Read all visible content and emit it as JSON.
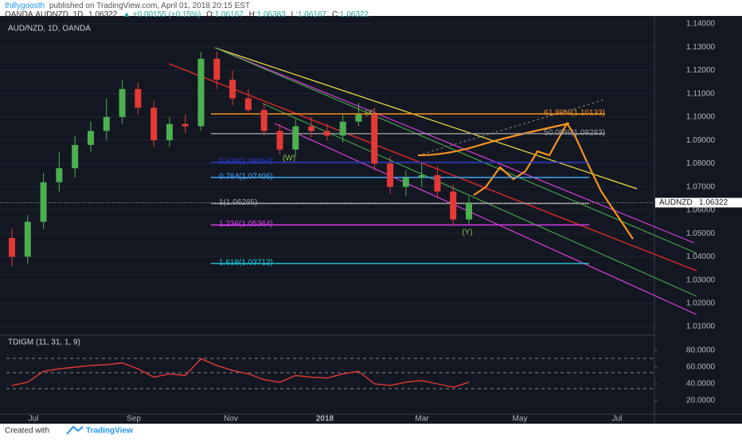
{
  "header": {
    "author": "thillygoosth",
    "published": "published on TradingView.com, April 01, 2018 20:15 EST",
    "symbol": "OANDA:AUDNZD, 1D",
    "last": "1.06322",
    "change": "▲ +0.00155 (+0.15%)",
    "ohlc": [
      {
        "k": "O:",
        "v": "1.06167"
      },
      {
        "k": "H:",
        "v": "1.06383"
      },
      {
        "k": "L:",
        "v": "1.06167"
      },
      {
        "k": "C:",
        "v": "1.06322"
      }
    ]
  },
  "chart_data": {
    "type": "candlestick",
    "title": "AUD/NZD, 1D, OANDA",
    "x_labels": [
      "Jul",
      "Sep",
      "Nov",
      "2018",
      "Mar",
      "May",
      "Jul"
    ],
    "opens": [
      1.048,
      1.04,
      1.055,
      1.072,
      1.078,
      1.088,
      1.094,
      1.1,
      1.112,
      1.104,
      1.09,
      1.097,
      1.096,
      1.125,
      1.116,
      1.108,
      1.103,
      1.094,
      1.086,
      1.096,
      1.094,
      1.092,
      1.098,
      1.101,
      1.08,
      1.07,
      1.074,
      1.075,
      1.068,
      1.056
    ],
    "highs": [
      1.052,
      1.058,
      1.076,
      1.085,
      1.092,
      1.098,
      1.108,
      1.116,
      1.115,
      1.107,
      1.1,
      1.101,
      1.128,
      1.128,
      1.12,
      1.112,
      1.106,
      1.097,
      1.099,
      1.1,
      1.097,
      1.101,
      1.106,
      1.104,
      1.083,
      1.077,
      1.08,
      1.079,
      1.071,
      1.066
    ],
    "lows": [
      1.036,
      1.037,
      1.052,
      1.068,
      1.074,
      1.085,
      1.09,
      1.097,
      1.101,
      1.087,
      1.087,
      1.093,
      1.094,
      1.112,
      1.105,
      1.101,
      1.092,
      1.084,
      1.083,
      1.091,
      1.09,
      1.089,
      1.096,
      1.077,
      1.067,
      1.066,
      1.07,
      1.065,
      1.053,
      1.054
    ],
    "closes": [
      1.04,
      1.055,
      1.072,
      1.078,
      1.088,
      1.094,
      1.1,
      1.112,
      1.104,
      1.09,
      1.097,
      1.096,
      1.125,
      1.116,
      1.108,
      1.103,
      1.094,
      1.086,
      1.096,
      1.094,
      1.092,
      1.098,
      1.101,
      1.08,
      1.07,
      1.074,
      1.075,
      1.068,
      1.056,
      1.06322
    ],
    "up_color": "#4caf50",
    "down_color": "#e53935",
    "ylim": [
      1.0073,
      1.1427
    ],
    "yticks": [
      {
        "value": 1.01,
        "label": "1.01000"
      },
      {
        "value": 1.02,
        "label": "1.02000"
      },
      {
        "value": 1.03,
        "label": "1.03000"
      },
      {
        "value": 1.04,
        "label": "1.04000"
      },
      {
        "value": 1.05,
        "label": "1.05000"
      },
      {
        "value": 1.06,
        "label": "1.06000"
      },
      {
        "value": 1.07,
        "label": "1.07000"
      },
      {
        "value": 1.08,
        "label": "1.08000"
      },
      {
        "value": 1.09,
        "label": "1.09000"
      },
      {
        "value": 1.1,
        "label": "1.10000"
      },
      {
        "value": 1.11,
        "label": "1.11000"
      },
      {
        "value": 1.12,
        "label": "1.12000"
      },
      {
        "value": 1.13,
        "label": "1.13000"
      },
      {
        "value": 1.14,
        "label": "1.14000"
      }
    ],
    "price_tag": {
      "name": "AUDNZD",
      "value": 1.06322,
      "label": "1.06322"
    },
    "fib_levels": [
      {
        "value": 1.10133,
        "label": "61.80%(1.10133)",
        "color": "#f7931e",
        "anchor": "end"
      },
      {
        "value": 1.09283,
        "label": "50.00%(1.09283)",
        "color": "#9e9e9e",
        "anchor": "end"
      },
      {
        "value": 1.08054,
        "label": "0.618(1.08054)",
        "color": "#2a3bd8",
        "anchor": "start"
      },
      {
        "value": 1.07406,
        "label": "0.764(1.07406)",
        "color": "#42a5f5",
        "anchor": "start"
      },
      {
        "value": 1.06285,
        "label": "1(1.06285)",
        "color": "#9e9e9e",
        "anchor": "start"
      },
      {
        "value": 1.05364,
        "label": "1.236(1.05364)",
        "color": "#e040fb",
        "anchor": "start"
      },
      {
        "value": 1.03712,
        "label": "1.618(1.03712)",
        "color": "#26c6da",
        "anchor": "start"
      }
    ],
    "wave_labels": [
      "(X)",
      "(W)",
      "(Y)"
    ],
    "indicator": {
      "title": "TDIGM (11, 31, 1, 9)",
      "color": "#e53935",
      "values": [
        38,
        42,
        55,
        58,
        60,
        62,
        63,
        65,
        58,
        48,
        52,
        50,
        70,
        62,
        56,
        52,
        45,
        42,
        50,
        48,
        47,
        52,
        55,
        40,
        38,
        42,
        44,
        40,
        36,
        42
      ],
      "ylim": [
        3.8,
        94.3
      ],
      "yticks": [
        {
          "value": 20,
          "label": "20.0000"
        },
        {
          "value": 40,
          "label": "40.0000"
        },
        {
          "value": 60,
          "label": "60.0000"
        },
        {
          "value": 80,
          "label": "80.0000"
        }
      ]
    }
  },
  "footer": {
    "created": "Created with",
    "brand": "TradingView"
  }
}
